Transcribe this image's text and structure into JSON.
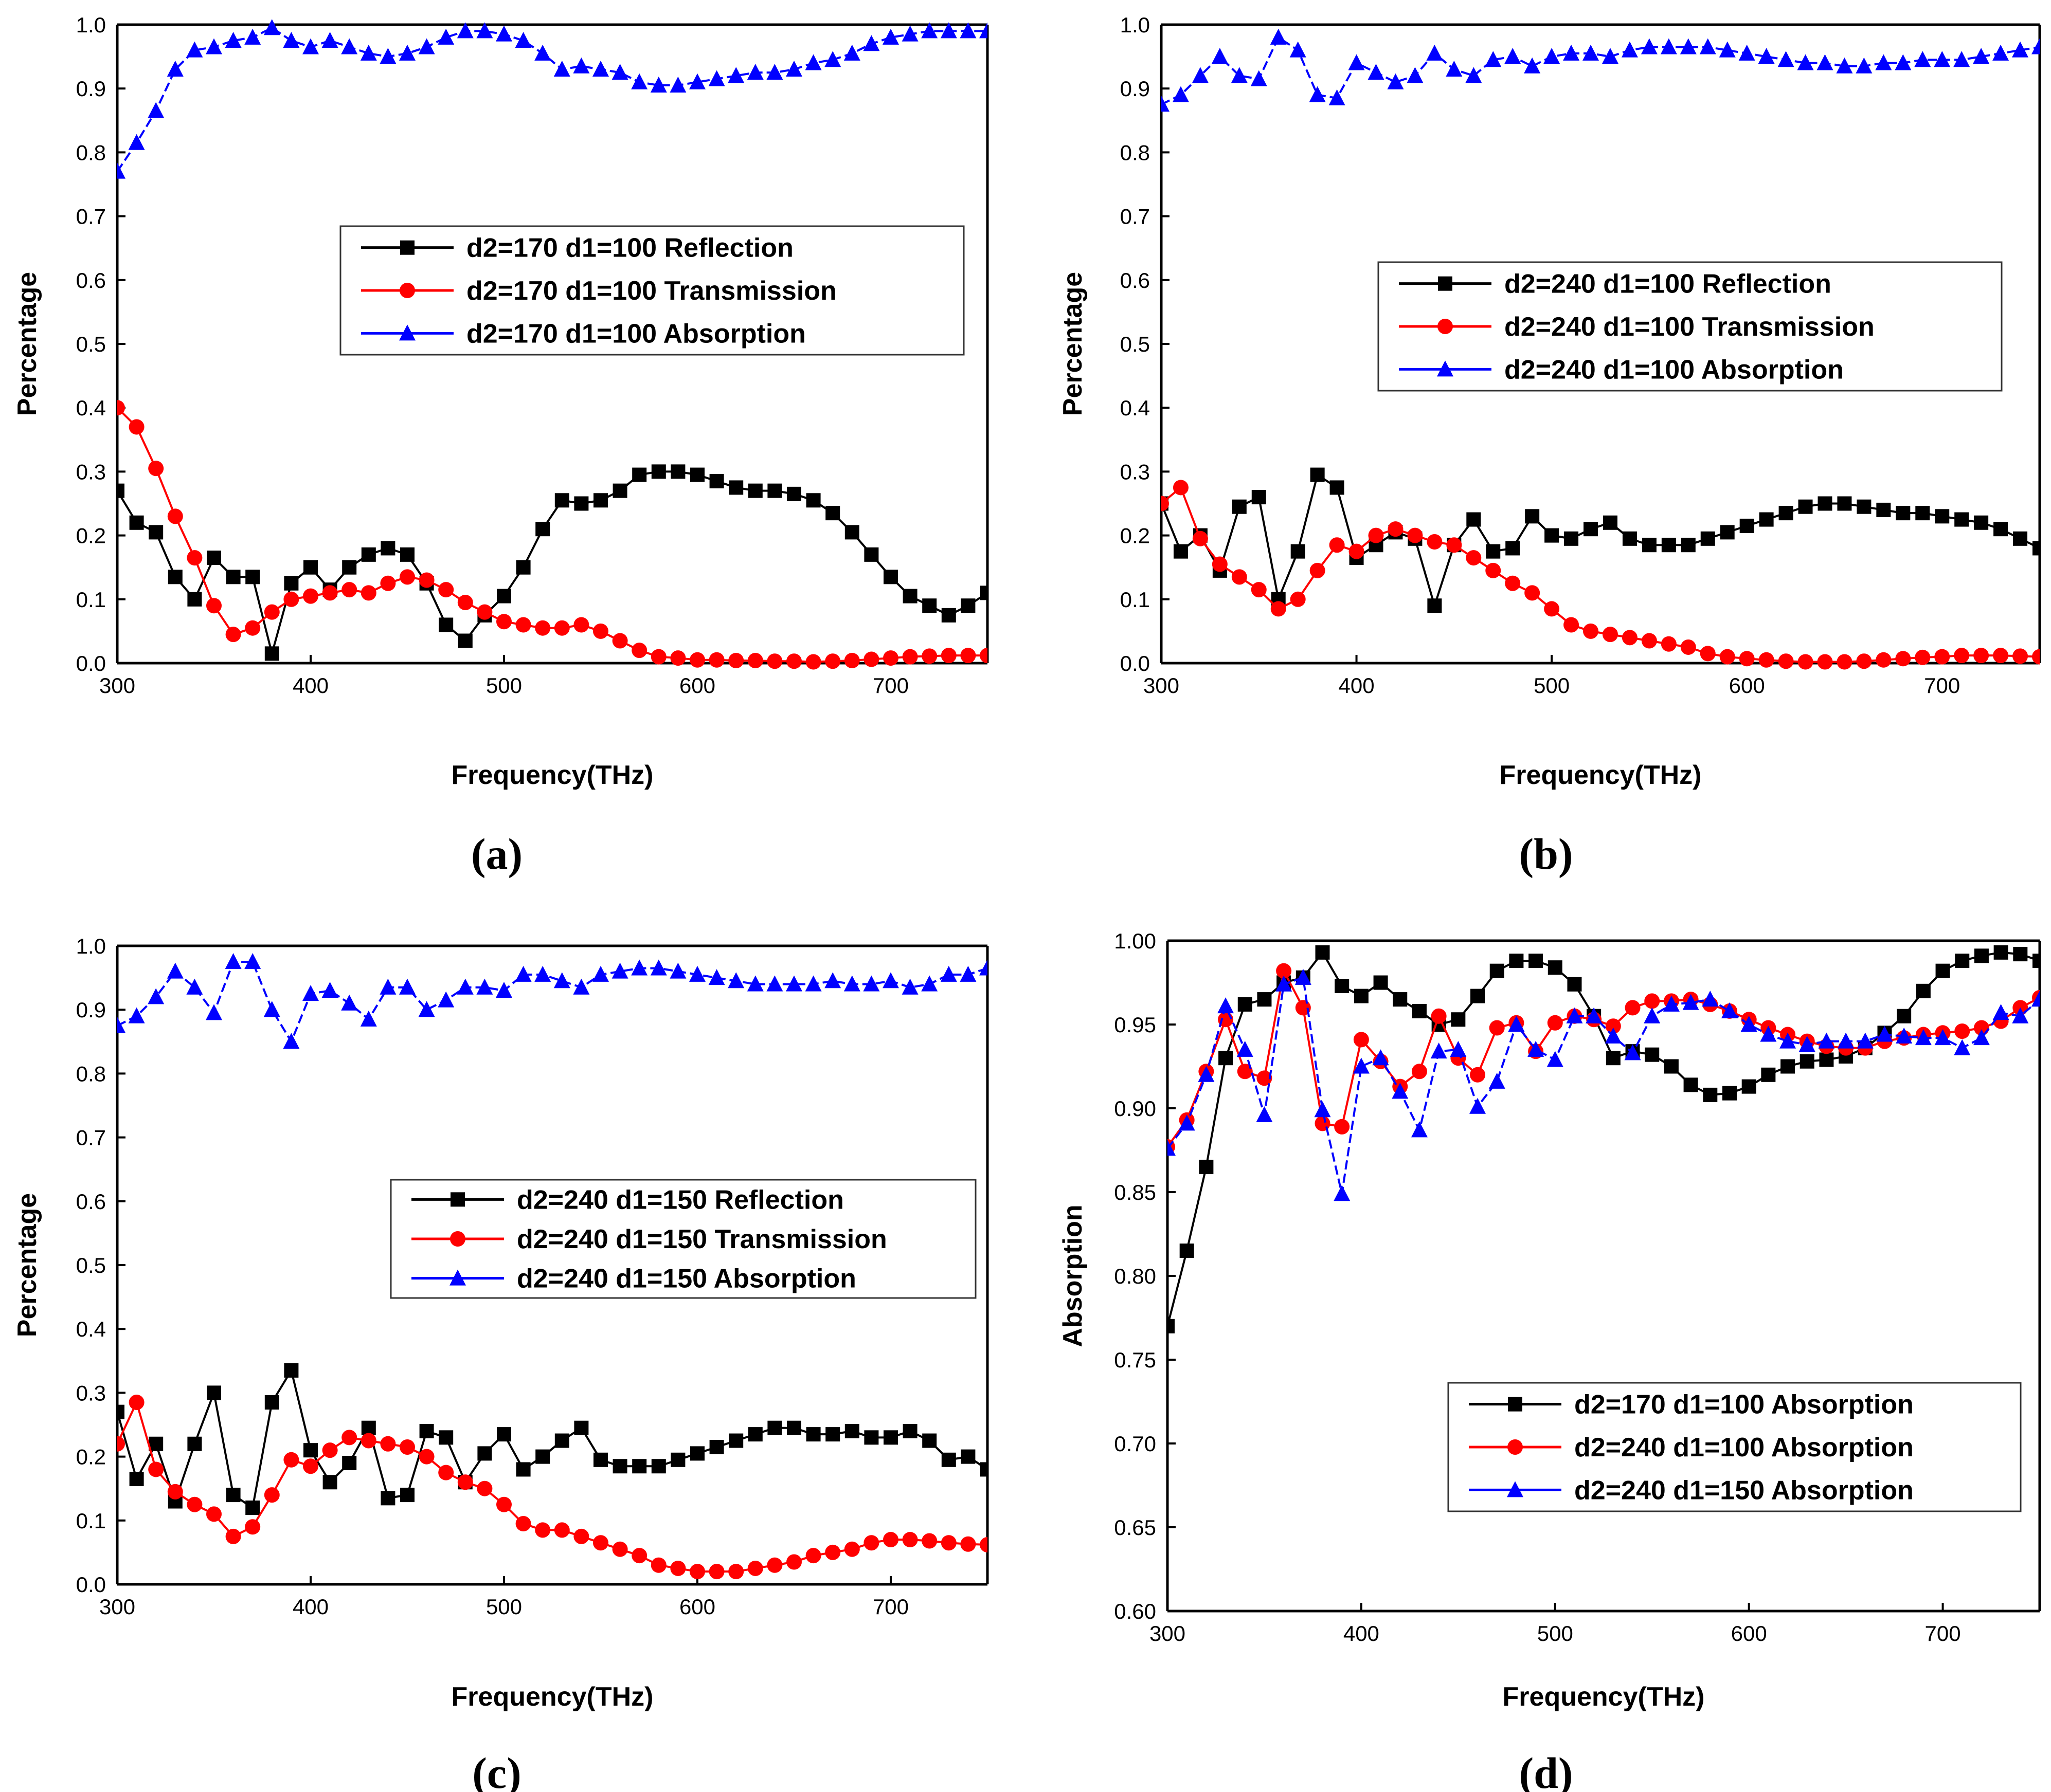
{
  "chart_data": [
    {
      "type": "line",
      "panel_label": "(a)",
      "xlabel": "Frequency(THz)",
      "ylabel": "Percentage",
      "xlim": [
        300,
        750
      ],
      "ylim": [
        0.0,
        1.0
      ],
      "xticks": [
        300,
        400,
        500,
        600,
        700
      ],
      "xtick_labels": [
        "300",
        "400",
        "500",
        "600",
        "700"
      ],
      "yticks": [
        0.0,
        0.1,
        0.2,
        0.3,
        0.4,
        0.5,
        0.6,
        0.7,
        0.8,
        0.9,
        1.0
      ],
      "ytick_labels": [
        "0.0",
        "0.1",
        "0.2",
        "0.3",
        "0.4",
        "0.5",
        "0.6",
        "0.7",
        "0.8",
        "0.9",
        "1.0"
      ],
      "legend_position": "center-right",
      "x": [
        300,
        310,
        320,
        330,
        340,
        350,
        360,
        370,
        380,
        390,
        400,
        410,
        420,
        430,
        440,
        450,
        460,
        470,
        480,
        490,
        500,
        510,
        520,
        530,
        540,
        550,
        560,
        570,
        580,
        590,
        600,
        610,
        620,
        630,
        640,
        650,
        660,
        670,
        680,
        690,
        700,
        710,
        720,
        730,
        740,
        750
      ],
      "series": [
        {
          "name": "d2=170 d1=100 Reflection",
          "color": "#000000",
          "marker": "square",
          "values": [
            0.27,
            0.22,
            0.205,
            0.135,
            0.1,
            0.165,
            0.135,
            0.135,
            0.015,
            0.125,
            0.15,
            0.115,
            0.15,
            0.17,
            0.18,
            0.17,
            0.125,
            0.06,
            0.035,
            0.075,
            0.105,
            0.15,
            0.21,
            0.255,
            0.25,
            0.255,
            0.27,
            0.295,
            0.3,
            0.3,
            0.295,
            0.285,
            0.275,
            0.27,
            0.27,
            0.265,
            0.255,
            0.235,
            0.205,
            0.17,
            0.135,
            0.105,
            0.09,
            0.075,
            0.09,
            0.11
          ]
        },
        {
          "name": "d2=170 d1=100 Transmission",
          "color": "#ff0000",
          "marker": "circle",
          "values": [
            0.4,
            0.37,
            0.305,
            0.23,
            0.165,
            0.09,
            0.045,
            0.055,
            0.08,
            0.1,
            0.105,
            0.11,
            0.115,
            0.11,
            0.125,
            0.135,
            0.13,
            0.115,
            0.095,
            0.08,
            0.065,
            0.06,
            0.055,
            0.055,
            0.06,
            0.05,
            0.035,
            0.02,
            0.01,
            0.008,
            0.005,
            0.005,
            0.004,
            0.004,
            0.003,
            0.003,
            0.002,
            0.003,
            0.004,
            0.006,
            0.008,
            0.01,
            0.011,
            0.012,
            0.012,
            0.012
          ]
        },
        {
          "name": "d2=170 d1=100 Absorption",
          "color": "#0000ff",
          "marker": "triangle",
          "values": [
            0.77,
            0.815,
            0.865,
            0.93,
            0.96,
            0.965,
            0.975,
            0.98,
            0.995,
            0.975,
            0.965,
            0.975,
            0.965,
            0.955,
            0.95,
            0.955,
            0.965,
            0.98,
            0.99,
            0.99,
            0.985,
            0.975,
            0.955,
            0.93,
            0.935,
            0.93,
            0.925,
            0.91,
            0.905,
            0.905,
            0.91,
            0.915,
            0.92,
            0.925,
            0.925,
            0.93,
            0.94,
            0.945,
            0.955,
            0.97,
            0.98,
            0.985,
            0.99,
            0.99,
            0.99,
            0.99
          ]
        }
      ]
    },
    {
      "type": "line",
      "panel_label": "(b)",
      "xlabel": "Frequency(THz)",
      "ylabel": "Percentage",
      "xlim": [
        300,
        750
      ],
      "ylim": [
        0.0,
        1.0
      ],
      "xticks": [
        300,
        400,
        500,
        600,
        700
      ],
      "xtick_labels": [
        "300",
        "400",
        "500",
        "600",
        "700"
      ],
      "yticks": [
        0.0,
        0.1,
        0.2,
        0.3,
        0.4,
        0.5,
        0.6,
        0.7,
        0.8,
        0.9,
        1.0
      ],
      "ytick_labels": [
        "0.0",
        "0.1",
        "0.2",
        "0.3",
        "0.4",
        "0.5",
        "0.6",
        "0.7",
        "0.8",
        "0.9",
        "1.0"
      ],
      "legend_position": "center-right",
      "x": [
        300,
        310,
        320,
        330,
        340,
        350,
        360,
        370,
        380,
        390,
        400,
        410,
        420,
        430,
        440,
        450,
        460,
        470,
        480,
        490,
        500,
        510,
        520,
        530,
        540,
        550,
        560,
        570,
        580,
        590,
        600,
        610,
        620,
        630,
        640,
        650,
        660,
        670,
        680,
        690,
        700,
        710,
        720,
        730,
        740,
        750
      ],
      "series": [
        {
          "name": "d2=240 d1=100 Reflection",
          "color": "#000000",
          "marker": "square",
          "values": [
            0.25,
            0.175,
            0.2,
            0.145,
            0.245,
            0.26,
            0.1,
            0.175,
            0.295,
            0.275,
            0.165,
            0.185,
            0.205,
            0.195,
            0.09,
            0.185,
            0.225,
            0.175,
            0.18,
            0.23,
            0.2,
            0.195,
            0.21,
            0.22,
            0.195,
            0.185,
            0.185,
            0.185,
            0.195,
            0.205,
            0.215,
            0.225,
            0.235,
            0.245,
            0.25,
            0.25,
            0.245,
            0.24,
            0.235,
            0.235,
            0.23,
            0.225,
            0.22,
            0.21,
            0.195,
            0.18
          ]
        },
        {
          "name": "d2=240 d1=100 Transmission",
          "color": "#ff0000",
          "marker": "circle",
          "values": [
            0.25,
            0.275,
            0.195,
            0.155,
            0.135,
            0.115,
            0.085,
            0.1,
            0.145,
            0.185,
            0.175,
            0.2,
            0.21,
            0.2,
            0.19,
            0.185,
            0.165,
            0.145,
            0.125,
            0.11,
            0.085,
            0.06,
            0.05,
            0.045,
            0.04,
            0.035,
            0.03,
            0.025,
            0.015,
            0.01,
            0.007,
            0.005,
            0.003,
            0.002,
            0.002,
            0.002,
            0.003,
            0.005,
            0.007,
            0.009,
            0.01,
            0.012,
            0.012,
            0.012,
            0.011,
            0.01
          ]
        },
        {
          "name": "d2=240 d1=100 Absorption",
          "color": "#0000ff",
          "marker": "triangle",
          "values": [
            0.875,
            0.89,
            0.92,
            0.95,
            0.92,
            0.915,
            0.98,
            0.96,
            0.89,
            0.885,
            0.94,
            0.925,
            0.91,
            0.92,
            0.955,
            0.93,
            0.92,
            0.945,
            0.95,
            0.935,
            0.95,
            0.955,
            0.955,
            0.95,
            0.96,
            0.965,
            0.965,
            0.965,
            0.965,
            0.96,
            0.955,
            0.95,
            0.945,
            0.94,
            0.94,
            0.935,
            0.935,
            0.94,
            0.94,
            0.945,
            0.945,
            0.945,
            0.95,
            0.955,
            0.96,
            0.965
          ]
        }
      ]
    },
    {
      "type": "line",
      "panel_label": "(c)",
      "xlabel": "Frequency(THz)",
      "ylabel": "Percentage",
      "xlim": [
        300,
        750
      ],
      "ylim": [
        0.0,
        1.0
      ],
      "xticks": [
        300,
        400,
        500,
        600,
        700
      ],
      "xtick_labels": [
        "300",
        "400",
        "500",
        "600",
        "700"
      ],
      "yticks": [
        0.0,
        0.1,
        0.2,
        0.3,
        0.4,
        0.5,
        0.6,
        0.7,
        0.8,
        0.9,
        1.0
      ],
      "ytick_labels": [
        "0.0",
        "0.1",
        "0.2",
        "0.3",
        "0.4",
        "0.5",
        "0.6",
        "0.7",
        "0.8",
        "0.9",
        "1.0"
      ],
      "legend_position": "center-right",
      "x": [
        300,
        310,
        320,
        330,
        340,
        350,
        360,
        370,
        380,
        390,
        400,
        410,
        420,
        430,
        440,
        450,
        460,
        470,
        480,
        490,
        500,
        510,
        520,
        530,
        540,
        550,
        560,
        570,
        580,
        590,
        600,
        610,
        620,
        630,
        640,
        650,
        660,
        670,
        680,
        690,
        700,
        710,
        720,
        730,
        740,
        750
      ],
      "series": [
        {
          "name": "d2=240 d1=150 Reflection",
          "color": "#000000",
          "marker": "square",
          "values": [
            0.27,
            0.165,
            0.22,
            0.13,
            0.22,
            0.3,
            0.14,
            0.12,
            0.285,
            0.335,
            0.21,
            0.16,
            0.19,
            0.245,
            0.135,
            0.14,
            0.24,
            0.23,
            0.16,
            0.205,
            0.235,
            0.18,
            0.2,
            0.225,
            0.245,
            0.195,
            0.185,
            0.185,
            0.185,
            0.195,
            0.205,
            0.215,
            0.225,
            0.235,
            0.245,
            0.245,
            0.235,
            0.235,
            0.24,
            0.23,
            0.23,
            0.24,
            0.225,
            0.195,
            0.2,
            0.18
          ]
        },
        {
          "name": "d2=240 d1=150 Transmission",
          "color": "#ff0000",
          "marker": "circle",
          "values": [
            0.22,
            0.285,
            0.18,
            0.145,
            0.125,
            0.11,
            0.075,
            0.09,
            0.14,
            0.195,
            0.185,
            0.21,
            0.23,
            0.225,
            0.22,
            0.215,
            0.2,
            0.175,
            0.16,
            0.15,
            0.125,
            0.095,
            0.085,
            0.085,
            0.075,
            0.065,
            0.055,
            0.045,
            0.03,
            0.025,
            0.02,
            0.02,
            0.02,
            0.025,
            0.03,
            0.035,
            0.045,
            0.05,
            0.055,
            0.065,
            0.07,
            0.07,
            0.068,
            0.065,
            0.063,
            0.062
          ]
        },
        {
          "name": "d2=240 d1=150 Absorption",
          "color": "#0000ff",
          "marker": "triangle",
          "values": [
            0.875,
            0.89,
            0.92,
            0.96,
            0.935,
            0.895,
            0.975,
            0.975,
            0.9,
            0.85,
            0.925,
            0.93,
            0.91,
            0.885,
            0.935,
            0.935,
            0.9,
            0.915,
            0.935,
            0.935,
            0.93,
            0.955,
            0.955,
            0.945,
            0.935,
            0.955,
            0.96,
            0.965,
            0.965,
            0.96,
            0.955,
            0.95,
            0.945,
            0.94,
            0.94,
            0.94,
            0.94,
            0.945,
            0.94,
            0.94,
            0.945,
            0.935,
            0.94,
            0.955,
            0.955,
            0.965
          ]
        }
      ]
    },
    {
      "type": "line",
      "panel_label": "(d)",
      "xlabel": "Frequency(THz)",
      "ylabel": "Absorption",
      "xlim": [
        300,
        750
      ],
      "ylim": [
        0.6,
        1.0
      ],
      "xticks": [
        300,
        400,
        500,
        600,
        700
      ],
      "xtick_labels": [
        "300",
        "400",
        "500",
        "600",
        "700"
      ],
      "yticks": [
        0.6,
        0.65,
        0.7,
        0.75,
        0.8,
        0.85,
        0.9,
        0.95,
        1.0
      ],
      "ytick_labels": [
        "0.60",
        "0.65",
        "0.70",
        "0.75",
        "0.80",
        "0.85",
        "0.90",
        "0.95",
        "1.00"
      ],
      "legend_position": "bottom-right",
      "x": [
        300,
        310,
        320,
        330,
        340,
        350,
        360,
        370,
        380,
        390,
        400,
        410,
        420,
        430,
        440,
        450,
        460,
        470,
        480,
        490,
        500,
        510,
        520,
        530,
        540,
        550,
        560,
        570,
        580,
        590,
        600,
        610,
        620,
        630,
        640,
        650,
        660,
        670,
        680,
        690,
        700,
        710,
        720,
        730,
        740,
        750
      ],
      "series": [
        {
          "name": "d2=170 d1=100 Absorption",
          "color": "#000000",
          "marker": "square",
          "values": [
            0.77,
            0.815,
            0.865,
            0.93,
            0.962,
            0.965,
            0.975,
            0.978,
            0.993,
            0.973,
            0.967,
            0.975,
            0.965,
            0.958,
            0.95,
            0.953,
            0.967,
            0.982,
            0.988,
            0.988,
            0.984,
            0.974,
            0.955,
            0.93,
            0.934,
            0.932,
            0.925,
            0.914,
            0.908,
            0.909,
            0.913,
            0.92,
            0.925,
            0.928,
            0.929,
            0.931,
            0.936,
            0.945,
            0.955,
            0.97,
            0.982,
            0.988,
            0.991,
            0.993,
            0.992,
            0.988
          ]
        },
        {
          "name": "d2=240 d1=100 Absorption",
          "color": "#ff0000",
          "marker": "circle",
          "values": [
            0.877,
            0.893,
            0.922,
            0.953,
            0.922,
            0.918,
            0.982,
            0.96,
            0.891,
            0.889,
            0.941,
            0.928,
            0.913,
            0.922,
            0.955,
            0.93,
            0.92,
            0.948,
            0.951,
            0.934,
            0.951,
            0.955,
            0.953,
            0.949,
            0.96,
            0.964,
            0.964,
            0.965,
            0.962,
            0.958,
            0.953,
            0.948,
            0.944,
            0.94,
            0.937,
            0.936,
            0.936,
            0.94,
            0.942,
            0.944,
            0.945,
            0.946,
            0.948,
            0.952,
            0.96,
            0.966
          ]
        },
        {
          "name": "d2=240 d1=150 Absorption",
          "color": "#0000ff",
          "marker": "triangle",
          "values": [
            0.876,
            0.891,
            0.92,
            0.961,
            0.935,
            0.896,
            0.974,
            0.978,
            0.899,
            0.849,
            0.925,
            0.93,
            0.91,
            0.887,
            0.934,
            0.935,
            0.901,
            0.916,
            0.95,
            0.935,
            0.929,
            0.955,
            0.955,
            0.943,
            0.933,
            0.955,
            0.962,
            0.963,
            0.965,
            0.958,
            0.95,
            0.944,
            0.94,
            0.938,
            0.94,
            0.94,
            0.94,
            0.944,
            0.943,
            0.942,
            0.942,
            0.936,
            0.942,
            0.957,
            0.955,
            0.965
          ]
        }
      ]
    }
  ]
}
